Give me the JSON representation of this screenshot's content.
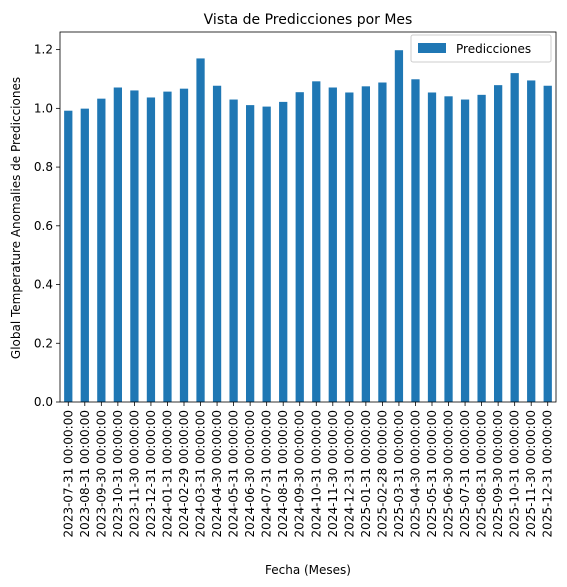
{
  "chart_data": {
    "type": "bar",
    "title": "Vista de Predicciones por Mes",
    "xlabel": "Fecha (Meses)",
    "ylabel": "Global Temperature Anomalies de Predicciones",
    "ylim": [
      0,
      1.26
    ],
    "yticks": [
      "0.0",
      "0.2",
      "0.4",
      "0.6",
      "0.8",
      "1.0",
      "1.2"
    ],
    "legend_position": "top-right",
    "grid": false,
    "bar_color": "#1f77b4",
    "categories": [
      "2023-07-31 00:00:00",
      "2023-08-31 00:00:00",
      "2023-09-30 00:00:00",
      "2023-10-31 00:00:00",
      "2023-11-30 00:00:00",
      "2023-12-31 00:00:00",
      "2024-01-31 00:00:00",
      "2024-02-29 00:00:00",
      "2024-03-31 00:00:00",
      "2024-04-30 00:00:00",
      "2024-05-31 00:00:00",
      "2024-06-30 00:00:00",
      "2024-07-31 00:00:00",
      "2024-08-31 00:00:00",
      "2024-09-30 00:00:00",
      "2024-10-31 00:00:00",
      "2024-11-30 00:00:00",
      "2024-12-31 00:00:00",
      "2025-01-31 00:00:00",
      "2025-02-28 00:00:00",
      "2025-03-31 00:00:00",
      "2025-04-30 00:00:00",
      "2025-05-31 00:00:00",
      "2025-06-30 00:00:00",
      "2025-07-31 00:00:00",
      "2025-08-31 00:00:00",
      "2025-09-30 00:00:00",
      "2025-10-31 00:00:00",
      "2025-11-30 00:00:00",
      "2025-12-31 00:00:00"
    ],
    "series": [
      {
        "name": "Predicciones",
        "values": [
          0.992,
          0.999,
          1.033,
          1.071,
          1.061,
          1.037,
          1.057,
          1.067,
          1.17,
          1.077,
          1.03,
          1.011,
          1.006,
          1.022,
          1.055,
          1.092,
          1.071,
          1.054,
          1.075,
          1.088,
          1.198,
          1.099,
          1.054,
          1.041,
          1.03,
          1.046,
          1.079,
          1.12,
          1.095,
          1.077
        ]
      }
    ]
  }
}
